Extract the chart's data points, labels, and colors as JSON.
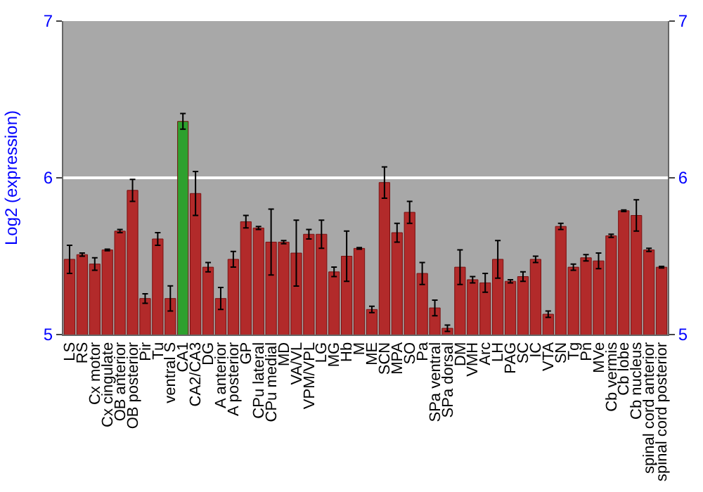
{
  "chart_data": {
    "type": "bar",
    "ylabel": "Log2 (expression)",
    "categories": [
      "LS",
      "RS",
      "Cx motor",
      "Cx cingulate",
      "OB anterior",
      "OB posterior",
      "Pir",
      "Tu",
      "ventral S",
      "CA1",
      "CA2/CA3",
      "DG",
      "A anterior",
      "A posterior",
      "GP",
      "CPu lateral",
      "CPu medial",
      "MD",
      "VA/VL",
      "VPM/VPL",
      "LG",
      "MG",
      "Hb",
      "M",
      "ME",
      "SCN",
      "MPA",
      "SO",
      "Pa",
      "SPa ventral",
      "SPa dorsal",
      "DM",
      "VMH",
      "Arc",
      "LH",
      "PAG",
      "SC",
      "IC",
      "VTA",
      "SN",
      "Tg",
      "Pn",
      "MVe",
      "Cb vermis",
      "Cb lobe",
      "Cb nucleus",
      "spinal cord anterior",
      "spinal cord posterior"
    ],
    "values": [
      5.48,
      5.51,
      5.45,
      5.54,
      5.66,
      5.92,
      5.23,
      5.61,
      5.23,
      6.36,
      5.9,
      5.43,
      5.23,
      5.48,
      5.72,
      5.68,
      5.59,
      5.59,
      5.52,
      5.64,
      5.64,
      5.4,
      5.5,
      5.55,
      5.16,
      5.97,
      5.65,
      5.78,
      5.39,
      5.17,
      5.04,
      5.43,
      5.35,
      5.33,
      5.48,
      5.34,
      5.37,
      5.48,
      5.13,
      5.69,
      5.43,
      5.49,
      5.47,
      5.63,
      5.79,
      5.76,
      5.54,
      5.43
    ],
    "errors": [
      0.09,
      0.01,
      0.04,
      0.005,
      0.01,
      0.07,
      0.03,
      0.04,
      0.08,
      0.05,
      0.14,
      0.03,
      0.07,
      0.05,
      0.04,
      0.01,
      0.21,
      0.01,
      0.21,
      0.03,
      0.09,
      0.03,
      0.16,
      0.005,
      0.02,
      0.1,
      0.06,
      0.07,
      0.07,
      0.05,
      0.02,
      0.11,
      0.02,
      0.06,
      0.12,
      0.01,
      0.03,
      0.02,
      0.02,
      0.02,
      0.02,
      0.02,
      0.05,
      0.01,
      0.005,
      0.1,
      0.01,
      0.005
    ],
    "colors": [
      "#b22a2a",
      "#b22a2a",
      "#b22a2a",
      "#b22a2a",
      "#b22a2a",
      "#b22a2a",
      "#b22a2a",
      "#b22a2a",
      "#b22a2a",
      "#2ea02e",
      "#b22a2a",
      "#b22a2a",
      "#b22a2a",
      "#b22a2a",
      "#b22a2a",
      "#b22a2a",
      "#b22a2a",
      "#b22a2a",
      "#b22a2a",
      "#b22a2a",
      "#b22a2a",
      "#b22a2a",
      "#b22a2a",
      "#b22a2a",
      "#b22a2a",
      "#b22a2a",
      "#b22a2a",
      "#b22a2a",
      "#b22a2a",
      "#b22a2a",
      "#b22a2a",
      "#b22a2a",
      "#b22a2a",
      "#b22a2a",
      "#b22a2a",
      "#b22a2a",
      "#b22a2a",
      "#b22a2a",
      "#b22a2a",
      "#b22a2a",
      "#b22a2a",
      "#b22a2a",
      "#b22a2a",
      "#b22a2a",
      "#b22a2a",
      "#b22a2a",
      "#b22a2a",
      "#b22a2a"
    ],
    "ylim": [
      5,
      7
    ],
    "yticks": [
      5,
      6,
      7
    ],
    "y2lim": [
      5,
      7
    ],
    "y2ticks": [
      5,
      6,
      7
    ],
    "grid": "y"
  }
}
